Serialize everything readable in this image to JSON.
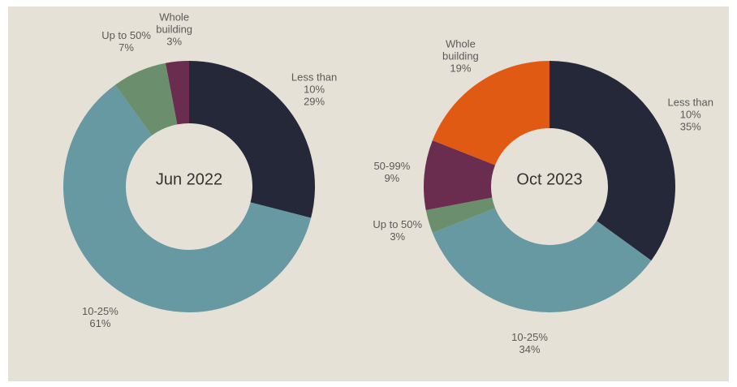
{
  "chart_data": [
    {
      "type": "donut",
      "title": "Jun 2022",
      "categories": [
        "Less than 10%",
        "10-25%",
        "Up to 50%",
        "Whole building"
      ],
      "values": [
        29,
        61,
        7,
        3
      ],
      "value_labels": [
        "29%",
        "61%",
        "7%",
        "3%"
      ],
      "colors": [
        "#252839",
        "#6699a1",
        "#6b8f6d",
        "#6b2d4f"
      ]
    },
    {
      "type": "donut",
      "title": "Oct 2023",
      "categories": [
        "Less than 10%",
        "10-25%",
        "Up to 50%",
        "50-99%",
        "Whole building"
      ],
      "values": [
        35,
        34,
        3,
        9,
        19
      ],
      "value_labels": [
        "35%",
        "34%",
        "3%",
        "9%",
        "19%"
      ],
      "colors": [
        "#252839",
        "#6699a1",
        "#6b8f6d",
        "#6b2d4f",
        "#e05a14"
      ]
    }
  ]
}
